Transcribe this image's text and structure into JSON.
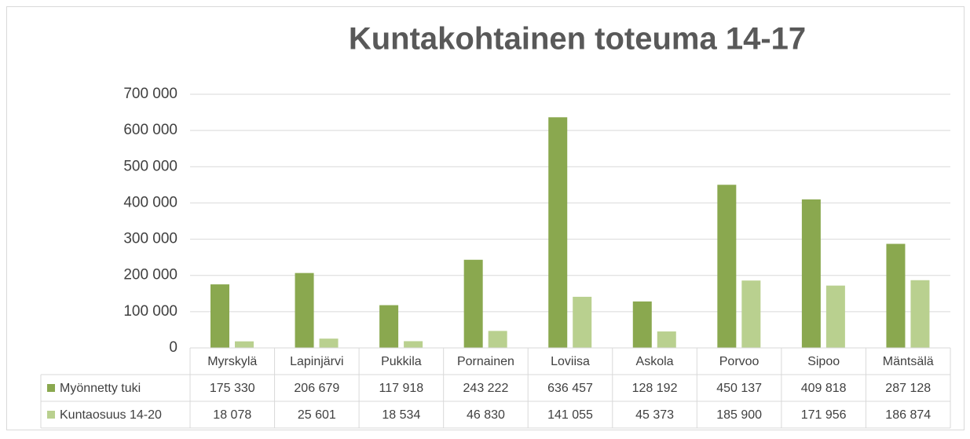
{
  "chart_data": {
    "type": "bar",
    "title": "Kuntakohtainen toteuma 14-17",
    "categories": [
      "Myrskylä",
      "Lapinjärvi",
      "Pukkila",
      "Pornainen",
      "Loviisa",
      "Askola",
      "Porvoo",
      "Sipoo",
      "Mäntsälä"
    ],
    "series": [
      {
        "name": "Myönnetty tuki",
        "color": "#8aa84f",
        "values": [
          175330,
          206679,
          117918,
          243222,
          636457,
          128192,
          450137,
          409818,
          287128
        ],
        "value_labels": [
          "175 330",
          "206 679",
          "117 918",
          "243 222",
          "636 457",
          "128 192",
          "450 137",
          "409 818",
          "287 128"
        ]
      },
      {
        "name": "Kuntaosuus 14-20",
        "color": "#b9d08f",
        "values": [
          18078,
          25601,
          18534,
          46830,
          141055,
          45373,
          185900,
          171956,
          186874
        ],
        "value_labels": [
          "18 078",
          "25 601",
          "18 534",
          "46 830",
          "141 055",
          "45 373",
          "185 900",
          "171 956",
          "186 874"
        ]
      }
    ],
    "ylim": [
      0,
      700000
    ],
    "yticks": [
      0,
      {
        "value": 100000,
        "label": "100 000"
      },
      {
        "value": 200000,
        "label": "200 000"
      },
      {
        "value": 300000,
        "label": "300 000"
      },
      {
        "value": 400000,
        "label": "400 000"
      },
      {
        "value": 500000,
        "label": "500 000"
      },
      {
        "value": 600000,
        "label": "600 000"
      },
      {
        "value": 700000,
        "label": "700 000"
      }
    ],
    "grid": true
  }
}
